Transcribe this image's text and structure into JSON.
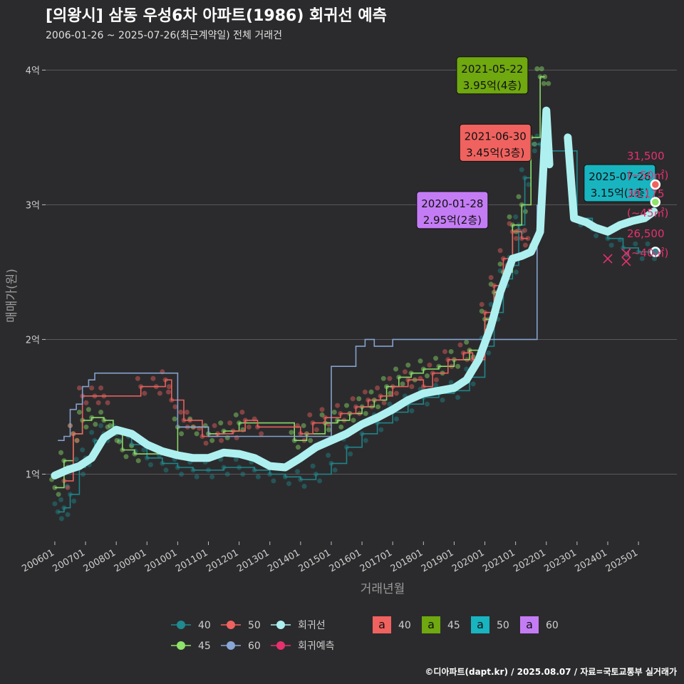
{
  "header": {
    "title": "[의왕시] 삼동 우성6차 아파트(1986) 회귀선 예측",
    "subtitle": "2006-01-26 ~ 2025-07-26(최근계약일) 전체 거래건",
    "credit": "©디아파트(dapt.kr) / 2025.08.07 / 자료=국토교통부 실거래가"
  },
  "colors": {
    "background": "#2b2b2d",
    "grid": "#5a5a5c",
    "s40": "#1f8a8f",
    "s45": "#8fe36a",
    "s50": "#f0625f",
    "s60": "#8aa6d6",
    "regression": "#aef0f0",
    "prediction": "#e8306e"
  },
  "chart_data": {
    "type": "line",
    "xlabel": "거래년월",
    "ylabel": "매매가(원)",
    "ylim": [
      0.5,
      4.15
    ],
    "y_unit": "억",
    "y_ticks": [
      {
        "value": 1,
        "label": "1억"
      },
      {
        "value": 2,
        "label": "2억"
      },
      {
        "value": 3,
        "label": "3억"
      },
      {
        "value": 4,
        "label": "4억"
      }
    ],
    "x_range": [
      2005.7,
      2026.25
    ],
    "x_ticks": [
      {
        "value": 2006.0,
        "label": "200601"
      },
      {
        "value": 2007.0,
        "label": "200701"
      },
      {
        "value": 2008.0,
        "label": "200801"
      },
      {
        "value": 2009.0,
        "label": "200901"
      },
      {
        "value": 2010.0,
        "label": "201001"
      },
      {
        "value": 2011.0,
        "label": "201101"
      },
      {
        "value": 2012.0,
        "label": "201201"
      },
      {
        "value": 2013.0,
        "label": "201301"
      },
      {
        "value": 2014.0,
        "label": "201401"
      },
      {
        "value": 2015.0,
        "label": "201501"
      },
      {
        "value": 2016.0,
        "label": "201601"
      },
      {
        "value": 2017.0,
        "label": "201701"
      },
      {
        "value": 2018.0,
        "label": "201801"
      },
      {
        "value": 2019.0,
        "label": "201901"
      },
      {
        "value": 2020.0,
        "label": "202001"
      },
      {
        "value": 2021.0,
        "label": "202101"
      },
      {
        "value": 2022.0,
        "label": "202201"
      },
      {
        "value": 2023.0,
        "label": "202301"
      },
      {
        "value": 2024.0,
        "label": "202401"
      },
      {
        "value": 2025.0,
        "label": "202501"
      }
    ],
    "series": [
      {
        "name": "40",
        "color": "#1f8a8f",
        "points": [
          [
            2006.1,
            0.72
          ],
          [
            2006.3,
            0.75
          ],
          [
            2006.5,
            0.85
          ],
          [
            2006.8,
            1.05
          ],
          [
            2007.0,
            1.12
          ],
          [
            2007.3,
            1.25
          ],
          [
            2007.6,
            1.3
          ],
          [
            2008.0,
            1.3
          ],
          [
            2008.5,
            1.22
          ],
          [
            2009.0,
            1.12
          ],
          [
            2009.5,
            1.08
          ],
          [
            2010.0,
            1.05
          ],
          [
            2010.5,
            1.03
          ],
          [
            2011.0,
            1.03
          ],
          [
            2011.5,
            1.05
          ],
          [
            2012.0,
            1.05
          ],
          [
            2012.5,
            1.03
          ],
          [
            2013.0,
            1.0
          ],
          [
            2013.5,
            0.98
          ],
          [
            2014.0,
            0.96
          ],
          [
            2014.5,
            1.0
          ],
          [
            2015.0,
            1.08
          ],
          [
            2015.5,
            1.2
          ],
          [
            2016.0,
            1.3
          ],
          [
            2016.5,
            1.38
          ],
          [
            2017.0,
            1.46
          ],
          [
            2017.5,
            1.52
          ],
          [
            2018.0,
            1.57
          ],
          [
            2018.5,
            1.6
          ],
          [
            2019.0,
            1.62
          ],
          [
            2019.5,
            1.72
          ],
          [
            2020.0,
            1.95
          ],
          [
            2020.3,
            2.2
          ],
          [
            2020.6,
            2.45
          ],
          [
            2020.9,
            2.55
          ],
          [
            2021.1,
            2.85
          ],
          [
            2021.3,
            3.2
          ],
          [
            2021.5,
            3.45
          ],
          [
            2021.8,
            3.45
          ],
          [
            2022.0,
            3.4
          ],
          [
            2023.0,
            2.9
          ],
          [
            2023.5,
            2.82
          ],
          [
            2024.0,
            2.75
          ],
          [
            2024.5,
            2.68
          ],
          [
            2025.0,
            2.65
          ],
          [
            2025.4,
            2.65
          ]
        ]
      },
      {
        "name": "45",
        "color": "#8fe36a",
        "points": [
          [
            2006.0,
            0.9
          ],
          [
            2006.3,
            1.1
          ],
          [
            2006.6,
            1.3
          ],
          [
            2006.9,
            1.4
          ],
          [
            2007.2,
            1.42
          ],
          [
            2007.6,
            1.4
          ],
          [
            2007.9,
            1.3
          ],
          [
            2008.2,
            1.18
          ],
          [
            2008.6,
            1.15
          ],
          [
            2010.0,
            1.35
          ],
          [
            2010.5,
            1.35
          ],
          [
            2011.0,
            1.3
          ],
          [
            2011.5,
            1.32
          ],
          [
            2012.0,
            1.38
          ],
          [
            2013.8,
            1.25
          ],
          [
            2014.2,
            1.3
          ],
          [
            2014.8,
            1.38
          ],
          [
            2015.2,
            1.4
          ],
          [
            2015.6,
            1.45
          ],
          [
            2016.0,
            1.5
          ],
          [
            2016.4,
            1.55
          ],
          [
            2016.8,
            1.65
          ],
          [
            2017.2,
            1.72
          ],
          [
            2017.6,
            1.75
          ],
          [
            2018.0,
            1.78
          ],
          [
            2018.5,
            1.8
          ],
          [
            2019.0,
            1.85
          ],
          [
            2019.5,
            1.92
          ],
          [
            2020.0,
            2.15
          ],
          [
            2020.3,
            2.35
          ],
          [
            2020.6,
            2.5
          ],
          [
            2020.9,
            2.85
          ],
          [
            2021.2,
            3.0
          ],
          [
            2021.5,
            3.5
          ],
          [
            2021.8,
            3.95
          ],
          [
            2021.95,
            3.95
          ]
        ]
      },
      {
        "name": "50",
        "color": "#f0625f",
        "points": [
          [
            2006.3,
            0.95
          ],
          [
            2006.6,
            1.3
          ],
          [
            2006.9,
            1.58
          ],
          [
            2007.3,
            1.58
          ],
          [
            2007.6,
            1.58
          ],
          [
            2008.8,
            1.65
          ],
          [
            2009.3,
            1.65
          ],
          [
            2009.6,
            1.7
          ],
          [
            2009.8,
            1.55
          ],
          [
            2010.2,
            1.4
          ],
          [
            2010.4,
            1.4
          ],
          [
            2010.8,
            1.28
          ],
          [
            2011.3,
            1.3
          ],
          [
            2011.8,
            1.32
          ],
          [
            2012.2,
            1.4
          ],
          [
            2012.6,
            1.35
          ],
          [
            2014.0,
            1.3
          ],
          [
            2014.4,
            1.38
          ],
          [
            2014.8,
            1.42
          ],
          [
            2015.3,
            1.45
          ],
          [
            2015.8,
            1.5
          ],
          [
            2016.2,
            1.55
          ],
          [
            2016.6,
            1.58
          ],
          [
            2017.0,
            1.65
          ],
          [
            2017.5,
            1.7
          ],
          [
            2018.0,
            1.65
          ],
          [
            2018.3,
            1.75
          ],
          [
            2018.8,
            1.85
          ],
          [
            2019.3,
            1.9
          ],
          [
            2019.6,
            1.85
          ],
          [
            2020.0,
            2.2
          ],
          [
            2020.3,
            2.4
          ],
          [
            2020.6,
            2.6
          ],
          [
            2020.9,
            2.8
          ],
          [
            2021.2,
            2.75
          ],
          [
            2021.4,
            2.75
          ]
        ]
      },
      {
        "name": "60",
        "color": "#8aa6d6",
        "points": [
          [
            2006.1,
            1.25
          ],
          [
            2006.3,
            1.28
          ],
          [
            2006.5,
            1.48
          ],
          [
            2006.7,
            1.52
          ],
          [
            2006.9,
            1.65
          ],
          [
            2007.1,
            1.7
          ],
          [
            2007.3,
            1.75
          ],
          [
            2010.0,
            1.35
          ],
          [
            2010.6,
            1.35
          ],
          [
            2011.0,
            1.28
          ],
          [
            2011.6,
            1.28
          ],
          [
            2015.0,
            1.8
          ],
          [
            2015.5,
            1.8
          ],
          [
            2015.8,
            1.95
          ],
          [
            2016.1,
            2.0
          ],
          [
            2016.4,
            1.95
          ],
          [
            2016.8,
            1.95
          ],
          [
            2017.0,
            2.0
          ],
          [
            2017.3,
            2.0
          ],
          [
            2021.7,
            3.0
          ]
        ]
      },
      {
        "name": "회귀선",
        "color": "#aef0f0",
        "points": [
          [
            2006.0,
            0.99
          ],
          [
            2006.4,
            1.03
          ],
          [
            2006.8,
            1.06
          ],
          [
            2007.2,
            1.12
          ],
          [
            2007.6,
            1.27
          ],
          [
            2008.0,
            1.33
          ],
          [
            2008.5,
            1.3
          ],
          [
            2009.0,
            1.22
          ],
          [
            2009.5,
            1.17
          ],
          [
            2010.0,
            1.14
          ],
          [
            2010.5,
            1.12
          ],
          [
            2011.0,
            1.12
          ],
          [
            2011.5,
            1.16
          ],
          [
            2012.0,
            1.15
          ],
          [
            2012.5,
            1.12
          ],
          [
            2013.0,
            1.06
          ],
          [
            2013.5,
            1.05
          ],
          [
            2014.0,
            1.12
          ],
          [
            2014.5,
            1.2
          ],
          [
            2015.0,
            1.25
          ],
          [
            2015.5,
            1.3
          ],
          [
            2016.0,
            1.37
          ],
          [
            2016.5,
            1.42
          ],
          [
            2017.0,
            1.48
          ],
          [
            2017.5,
            1.55
          ],
          [
            2018.0,
            1.6
          ],
          [
            2018.5,
            1.62
          ],
          [
            2019.0,
            1.64
          ],
          [
            2019.4,
            1.7
          ],
          [
            2019.8,
            1.85
          ],
          [
            2020.2,
            2.1
          ],
          [
            2020.5,
            2.35
          ],
          [
            2020.9,
            2.6
          ],
          [
            2021.2,
            2.62
          ],
          [
            2021.5,
            2.65
          ],
          [
            2021.8,
            2.8
          ],
          [
            2022.0,
            3.7
          ],
          [
            2022.1,
            3.3
          ],
          [
            2022.5,
            0
          ],
          [
            2022.7,
            3.5
          ],
          [
            2022.9,
            2.9
          ],
          [
            2023.3,
            2.87
          ],
          [
            2023.6,
            2.83
          ],
          [
            2024.0,
            2.8
          ],
          [
            2024.4,
            2.85
          ],
          [
            2024.8,
            2.88
          ],
          [
            2025.2,
            2.9
          ],
          [
            2025.5,
            2.95
          ]
        ]
      }
    ],
    "legend": {
      "series": [
        {
          "key": "40",
          "label": "40"
        },
        {
          "key": "50",
          "label": "50"
        },
        {
          "key": "regression",
          "label": "회귀선"
        },
        {
          "key": "45",
          "label": "45"
        },
        {
          "key": "60",
          "label": "60"
        },
        {
          "key": "prediction",
          "label": "회귀예측"
        }
      ],
      "label_boxes": [
        {
          "key": "40",
          "glyph": "a",
          "label": "40",
          "color": "#f0625f"
        },
        {
          "key": "45",
          "glyph": "a",
          "label": "45",
          "color": "#6fa80f"
        },
        {
          "key": "50",
          "glyph": "a",
          "label": "50",
          "color": "#18b4c0"
        },
        {
          "key": "60",
          "glyph": "a",
          "label": "60",
          "color": "#c47cf5"
        }
      ]
    },
    "annotations": [
      {
        "date": "2021-05-22",
        "price": "3.95억(4층)",
        "color": "#6fa80f",
        "x": 2021.4,
        "y": 3.95
      },
      {
        "date": "2021-06-30",
        "price": "3.45억(3층)",
        "color": "#f0625f",
        "x": 2021.5,
        "y": 3.45
      },
      {
        "date": "2025-07-26",
        "price": "3.15억(1층)",
        "color": "#18b4c0",
        "x": 2025.55,
        "y": 3.15
      },
      {
        "date": "2020-01-28",
        "price": "2.95억(2층)",
        "color": "#c47cf5",
        "x": 2020.1,
        "y": 2.95
      }
    ],
    "predictions": [
      {
        "value": "31,500",
        "area": "(~50㎡)",
        "y": 3.15,
        "color": "#f0625f"
      },
      {
        "value": "30,175",
        "area": "(~45㎡)",
        "y": 3.02,
        "color": "#8fe36a"
      },
      {
        "value": "26,500",
        "area": "(~40㎡)",
        "y": 2.65,
        "color": "#1f8a8f"
      }
    ]
  }
}
